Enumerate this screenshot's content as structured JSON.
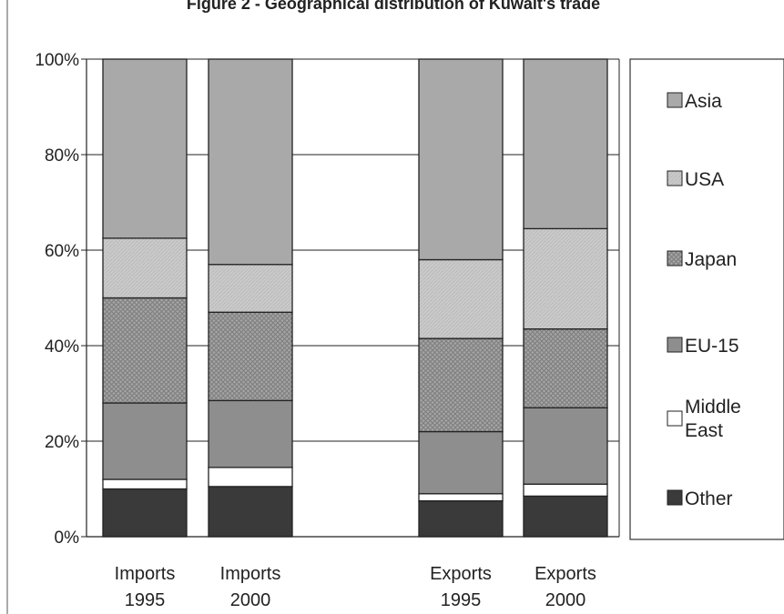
{
  "chart_data": {
    "type": "bar",
    "stacked": true,
    "percent": true,
    "title": "Figure 2 - Geographical distribution of Kuwait's trade",
    "categories": [
      {
        "line1": "Imports",
        "line2": "1995"
      },
      {
        "line1": "Imports",
        "line2": "2000"
      },
      {
        "line1": "Exports",
        "line2": "1995"
      },
      {
        "line1": "Exports",
        "line2": "2000"
      }
    ],
    "series": [
      {
        "name": "Other",
        "values": [
          10,
          10.5,
          7.5,
          8.5
        ],
        "color": "#3a3a3a",
        "pattern": "solid"
      },
      {
        "name": "Middle East",
        "name_lines": [
          "Middle",
          "East"
        ],
        "values": [
          2,
          4,
          1.5,
          2.5
        ],
        "color": "#ffffff",
        "pattern": "solid"
      },
      {
        "name": "EU-15",
        "values": [
          16,
          14,
          13,
          16
        ],
        "color": "#8e8e8e",
        "pattern": "solid"
      },
      {
        "name": "Japan",
        "values": [
          22,
          18.5,
          19.5,
          16.5
        ],
        "color": "#9a9a9a",
        "pattern": "crosshatch"
      },
      {
        "name": "USA",
        "values": [
          12.5,
          10,
          16.5,
          21
        ],
        "color": "#c6c6c6",
        "pattern": "light"
      },
      {
        "name": "Asia",
        "values": [
          37.5,
          43,
          42,
          35.5
        ],
        "color": "#a9a9a9",
        "pattern": "solid"
      }
    ],
    "legend_order": [
      "Asia",
      "USA",
      "Japan",
      "EU-15",
      "Middle East",
      "Other"
    ],
    "y_ticks": [
      "0%",
      "20%",
      "40%",
      "60%",
      "80%",
      "100%"
    ],
    "ylim": [
      0,
      100
    ],
    "grid": true,
    "legend_position": "right"
  }
}
